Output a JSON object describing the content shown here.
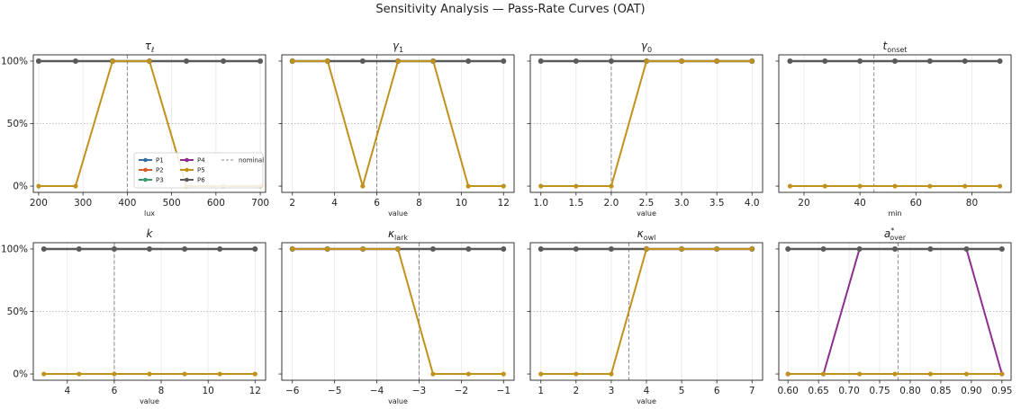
{
  "figure": {
    "title": "Sensitivity Analysis — Pass-Rate Curves (OAT)"
  },
  "legend": {
    "entries": [
      "P1",
      "P2",
      "P3",
      "P4",
      "P5",
      "P6",
      "nominal"
    ]
  },
  "series_colors": {
    "P1": "#3a6ea5",
    "P2": "#d1602a",
    "P3": "#3a9b6b",
    "P4": "#8e2d8e",
    "P5": "#c1921b",
    "P6": "#5a5a5a",
    "nominal": "#888888"
  },
  "chart_data": [
    {
      "type": "line",
      "title_base": "τ",
      "title_sub": "ℓ",
      "title_sup": "",
      "xlabel": "lux",
      "xlim": [
        188,
        712
      ],
      "xticks": [
        200,
        300,
        400,
        500,
        600,
        700
      ],
      "xtick_labels": [
        "200",
        "300",
        "400",
        "500",
        "600",
        "700"
      ],
      "ylim": [
        -0.05,
        1.05
      ],
      "yticks": [
        0,
        0.5,
        1
      ],
      "ytick_labels": [
        "0%",
        "50%",
        "100%"
      ],
      "grid": true,
      "nominal": 400,
      "legend_location": "lower center",
      "x": [
        200,
        283.3,
        366.7,
        450,
        533.3,
        616.7,
        700
      ],
      "series": [
        {
          "name": "P1",
          "values": [
            1,
            1,
            1,
            1,
            1,
            1,
            1
          ]
        },
        {
          "name": "P2",
          "values": [
            1,
            1,
            1,
            1,
            1,
            1,
            1
          ]
        },
        {
          "name": "P3",
          "values": [
            1,
            1,
            1,
            1,
            1,
            1,
            1
          ]
        },
        {
          "name": "P4",
          "values": [
            1,
            1,
            1,
            1,
            1,
            1,
            1
          ]
        },
        {
          "name": "P5",
          "values": [
            0,
            0,
            1,
            1,
            0,
            0,
            0
          ]
        },
        {
          "name": "P6",
          "values": [
            1,
            1,
            1,
            1,
            1,
            1,
            1
          ]
        }
      ]
    },
    {
      "type": "line",
      "title_base": "γ",
      "title_sub": "1",
      "title_sup": "",
      "xlabel": "value",
      "xlim": [
        1.5,
        12.5
      ],
      "xticks": [
        2,
        4,
        6,
        8,
        10,
        12
      ],
      "xtick_labels": [
        "2",
        "4",
        "6",
        "8",
        "10",
        "12"
      ],
      "ylim": [
        -0.05,
        1.05
      ],
      "yticks": [
        0,
        0.5,
        1
      ],
      "ytick_labels": [
        "",
        "",
        ""
      ],
      "grid": true,
      "nominal": 6,
      "x": [
        2,
        3.67,
        5.33,
        7,
        8.67,
        10.33,
        12
      ],
      "series": [
        {
          "name": "P1",
          "values": [
            1,
            1,
            1,
            1,
            1,
            1,
            1
          ]
        },
        {
          "name": "P2",
          "values": [
            1,
            1,
            1,
            1,
            1,
            1,
            1
          ]
        },
        {
          "name": "P3",
          "values": [
            1,
            1,
            1,
            1,
            1,
            1,
            1
          ]
        },
        {
          "name": "P4",
          "values": [
            1,
            1,
            1,
            1,
            1,
            1,
            1
          ]
        },
        {
          "name": "P5",
          "values": [
            1,
            1,
            0,
            1,
            1,
            0,
            0
          ]
        },
        {
          "name": "P6",
          "values": [
            1,
            1,
            1,
            1,
            1,
            1,
            1
          ]
        }
      ]
    },
    {
      "type": "line",
      "title_base": "γ",
      "title_sub": "0",
      "title_sup": "",
      "xlabel": "value",
      "xlim": [
        0.85,
        4.15
      ],
      "xticks": [
        1,
        1.5,
        2,
        2.5,
        3,
        3.5,
        4
      ],
      "xtick_labels": [
        "1.0",
        "1.5",
        "2.0",
        "2.5",
        "3.0",
        "3.5",
        "4.0"
      ],
      "ylim": [
        -0.05,
        1.05
      ],
      "yticks": [
        0,
        0.5,
        1
      ],
      "ytick_labels": [
        "",
        "",
        ""
      ],
      "grid": true,
      "nominal": 2,
      "x": [
        1,
        1.5,
        2,
        2.5,
        3,
        3.5,
        4
      ],
      "series": [
        {
          "name": "P1",
          "values": [
            1,
            1,
            1,
            1,
            1,
            1,
            1
          ]
        },
        {
          "name": "P2",
          "values": [
            1,
            1,
            1,
            1,
            1,
            1,
            1
          ]
        },
        {
          "name": "P3",
          "values": [
            1,
            1,
            1,
            1,
            1,
            1,
            1
          ]
        },
        {
          "name": "P4",
          "values": [
            1,
            1,
            1,
            1,
            1,
            1,
            1
          ]
        },
        {
          "name": "P5",
          "values": [
            0,
            0,
            0,
            1,
            1,
            1,
            1
          ]
        },
        {
          "name": "P6",
          "values": [
            1,
            1,
            1,
            1,
            1,
            1,
            1
          ]
        }
      ]
    },
    {
      "type": "line",
      "title_base": "t",
      "title_sub": "onset",
      "title_sup": "",
      "xlabel": "min",
      "xlim": [
        11,
        94
      ],
      "xticks": [
        20,
        40,
        60,
        80
      ],
      "xtick_labels": [
        "20",
        "40",
        "60",
        "80"
      ],
      "ylim": [
        -0.05,
        1.05
      ],
      "yticks": [
        0,
        0.5,
        1
      ],
      "ytick_labels": [
        "",
        "",
        ""
      ],
      "grid": true,
      "nominal": 45,
      "x": [
        15,
        27.5,
        40,
        52.5,
        65,
        77.5,
        90
      ],
      "series": [
        {
          "name": "P1",
          "values": [
            1,
            1,
            1,
            1,
            1,
            1,
            1
          ]
        },
        {
          "name": "P2",
          "values": [
            1,
            1,
            1,
            1,
            1,
            1,
            1
          ]
        },
        {
          "name": "P3",
          "values": [
            1,
            1,
            1,
            1,
            1,
            1,
            1
          ]
        },
        {
          "name": "P4",
          "values": [
            1,
            1,
            1,
            1,
            1,
            1,
            1
          ]
        },
        {
          "name": "P5",
          "values": [
            0,
            0,
            0,
            0,
            0,
            0,
            0
          ]
        },
        {
          "name": "P6",
          "values": [
            1,
            1,
            1,
            1,
            1,
            1,
            1
          ]
        }
      ]
    },
    {
      "type": "line",
      "title_base": "k",
      "title_sub": "",
      "title_sup": "",
      "xlabel": "value",
      "xlim": [
        2.55,
        12.45
      ],
      "xticks": [
        4,
        6,
        8,
        10,
        12
      ],
      "xtick_labels": [
        "4",
        "6",
        "8",
        "10",
        "12"
      ],
      "ylim": [
        -0.05,
        1.05
      ],
      "yticks": [
        0,
        0.5,
        1
      ],
      "ytick_labels": [
        "0%",
        "50%",
        "100%"
      ],
      "grid": true,
      "nominal": 6,
      "x": [
        3,
        4.5,
        6,
        7.5,
        9,
        10.5,
        12
      ],
      "series": [
        {
          "name": "P1",
          "values": [
            1,
            1,
            1,
            1,
            1,
            1,
            1
          ]
        },
        {
          "name": "P2",
          "values": [
            1,
            1,
            1,
            1,
            1,
            1,
            1
          ]
        },
        {
          "name": "P3",
          "values": [
            1,
            1,
            1,
            1,
            1,
            1,
            1
          ]
        },
        {
          "name": "P4",
          "values": [
            1,
            1,
            1,
            1,
            1,
            1,
            1
          ]
        },
        {
          "name": "P5",
          "values": [
            0,
            0,
            0,
            0,
            0,
            0,
            0
          ]
        },
        {
          "name": "P6",
          "values": [
            1,
            1,
            1,
            1,
            1,
            1,
            1
          ]
        }
      ]
    },
    {
      "type": "line",
      "title_base": "κ",
      "title_sub": "lark",
      "title_sup": "",
      "xlabel": "value",
      "xlim": [
        -6.25,
        -0.75
      ],
      "xticks": [
        -6,
        -5,
        -4,
        -3,
        -2,
        -1
      ],
      "xtick_labels": [
        "−6",
        "−5",
        "−4",
        "−3",
        "−2",
        "−1"
      ],
      "ylim": [
        -0.05,
        1.05
      ],
      "yticks": [
        0,
        0.5,
        1
      ],
      "ytick_labels": [
        "",
        "",
        ""
      ],
      "grid": true,
      "nominal": -3,
      "x": [
        -6,
        -5.17,
        -4.33,
        -3.5,
        -2.67,
        -1.83,
        -1
      ],
      "series": [
        {
          "name": "P1",
          "values": [
            1,
            1,
            1,
            1,
            1,
            1,
            1
          ]
        },
        {
          "name": "P2",
          "values": [
            1,
            1,
            1,
            1,
            1,
            1,
            1
          ]
        },
        {
          "name": "P3",
          "values": [
            1,
            1,
            1,
            1,
            1,
            1,
            1
          ]
        },
        {
          "name": "P4",
          "values": [
            1,
            1,
            1,
            1,
            1,
            1,
            1
          ]
        },
        {
          "name": "P5",
          "values": [
            1,
            1,
            1,
            1,
            0,
            0,
            0
          ]
        },
        {
          "name": "P6",
          "values": [
            1,
            1,
            1,
            1,
            1,
            1,
            1
          ]
        }
      ]
    },
    {
      "type": "line",
      "title_base": "κ",
      "title_sub": "owl",
      "title_sup": "",
      "xlabel": "value",
      "xlim": [
        0.7,
        7.3
      ],
      "xticks": [
        1,
        2,
        3,
        4,
        5,
        6,
        7
      ],
      "xtick_labels": [
        "1",
        "2",
        "3",
        "4",
        "5",
        "6",
        "7"
      ],
      "ylim": [
        -0.05,
        1.05
      ],
      "yticks": [
        0,
        0.5,
        1
      ],
      "ytick_labels": [
        "",
        "",
        ""
      ],
      "grid": true,
      "nominal": 3.5,
      "x": [
        1,
        2,
        3,
        4,
        5,
        6,
        7
      ],
      "series": [
        {
          "name": "P1",
          "values": [
            1,
            1,
            1,
            1,
            1,
            1,
            1
          ]
        },
        {
          "name": "P2",
          "values": [
            1,
            1,
            1,
            1,
            1,
            1,
            1
          ]
        },
        {
          "name": "P3",
          "values": [
            1,
            1,
            1,
            1,
            1,
            1,
            1
          ]
        },
        {
          "name": "P4",
          "values": [
            1,
            1,
            1,
            1,
            1,
            1,
            1
          ]
        },
        {
          "name": "P5",
          "values": [
            0,
            0,
            0,
            1,
            1,
            1,
            1
          ]
        },
        {
          "name": "P6",
          "values": [
            1,
            1,
            1,
            1,
            1,
            1,
            1
          ]
        }
      ]
    },
    {
      "type": "line",
      "title_base": "a",
      "title_sub": "over",
      "title_sup": "*",
      "xlabel": "",
      "xlim": [
        0.585,
        0.965
      ],
      "xticks": [
        0.6,
        0.65,
        0.7,
        0.75,
        0.8,
        0.85,
        0.9,
        0.95
      ],
      "xtick_labels": [
        "0.60",
        "0.65",
        "0.70",
        "0.75",
        "0.80",
        "0.85",
        "0.90",
        "0.95"
      ],
      "ylim": [
        -0.05,
        1.05
      ],
      "yticks": [
        0,
        0.5,
        1
      ],
      "ytick_labels": [
        "",
        "",
        ""
      ],
      "grid": true,
      "nominal": 0.78,
      "x": [
        0.6,
        0.658,
        0.717,
        0.775,
        0.833,
        0.892,
        0.95
      ],
      "series": [
        {
          "name": "P1",
          "values": [
            1,
            1,
            1,
            1,
            1,
            1,
            1
          ]
        },
        {
          "name": "P2",
          "values": [
            1,
            1,
            1,
            1,
            1,
            1,
            1
          ]
        },
        {
          "name": "P3",
          "values": [
            1,
            1,
            1,
            1,
            1,
            1,
            1
          ]
        },
        {
          "name": "P4",
          "values": [
            0,
            0,
            1,
            1,
            1,
            1,
            0
          ]
        },
        {
          "name": "P5",
          "values": [
            0,
            0,
            0,
            0,
            0,
            0,
            0
          ]
        },
        {
          "name": "P6",
          "values": [
            1,
            1,
            1,
            1,
            1,
            1,
            1
          ]
        }
      ]
    }
  ]
}
